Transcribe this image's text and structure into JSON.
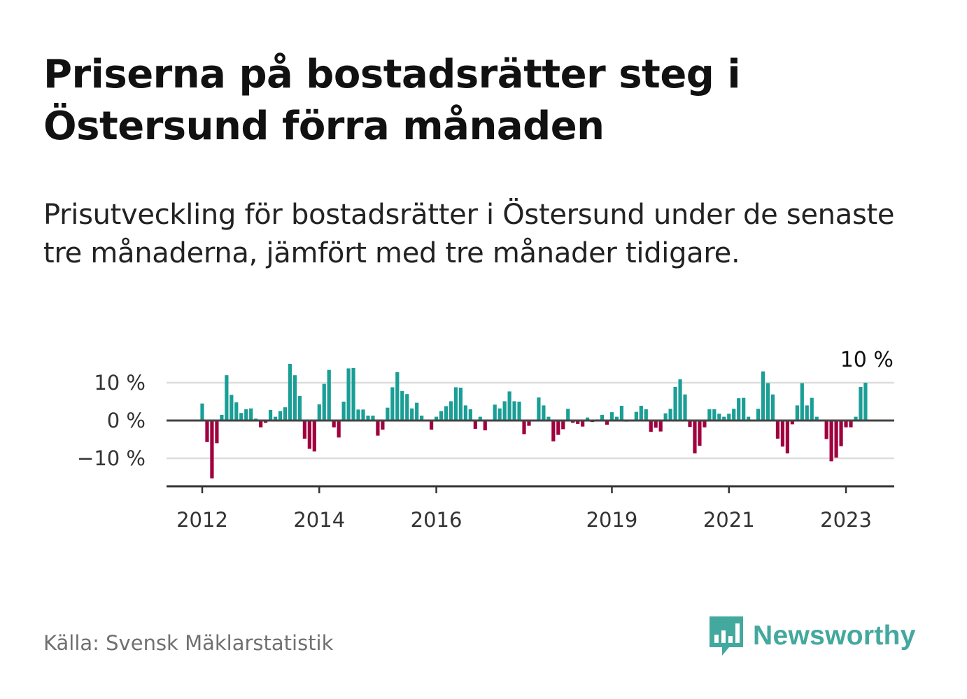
{
  "header": {
    "title": "Priserna på bostadsrätter steg i Östersund förra månaden",
    "subtitle": "Prisutveckling för bostadsrätter i Östersund under de senaste tre månaderna, jämfört med tre månader tidigare."
  },
  "footer": {
    "source": "Källa: Svensk Mäklarstatistik",
    "brand": "Newsworthy",
    "brand_icon": "bar-chart-speech-bubble-icon"
  },
  "colors": {
    "positive": "#1a9e96",
    "negative": "#a0003e",
    "zero_line": "#444444",
    "grid": "#dddddd",
    "axis": "#333333",
    "brand": "#43a89e"
  },
  "chart_data": {
    "type": "bar",
    "title": "",
    "xlabel": "",
    "ylabel": "",
    "ylim": [
      -17,
      17
    ],
    "y_ticks": [
      10,
      0,
      -10
    ],
    "y_tick_labels": [
      "10 %",
      "0 %",
      "−10 %"
    ],
    "x_tick_labels": [
      "2012",
      "2014",
      "2016",
      "2019",
      "2021",
      "2023"
    ],
    "grid": true,
    "last_value_label": "10 %",
    "series": [
      {
        "values": [
          4.5,
          -5.7,
          -15.3,
          -6.0,
          1.5,
          12.0,
          6.8,
          4.8,
          2.0,
          3.0,
          3.2,
          0.5,
          -1.8,
          -0.6,
          2.8,
          1.0,
          2.5,
          3.5,
          15.0,
          12.0,
          6.5,
          -4.8,
          -7.5,
          -8.2,
          4.3,
          9.7,
          13.4,
          -1.8,
          -4.5,
          5.0,
          13.8,
          13.9,
          2.9,
          2.9,
          1.3,
          1.3,
          -4.0,
          -2.4,
          3.4,
          8.8,
          12.8,
          7.8,
          7.0,
          3.2,
          4.7,
          1.3,
          -0.2,
          -2.4,
          1.0,
          2.5,
          3.8,
          5.1,
          8.8,
          8.7,
          4.0,
          3.0,
          -2.2,
          1.0,
          -2.6,
          0.2,
          4.2,
          3.2,
          5.1,
          7.7,
          5.1,
          5.0,
          -3.6,
          -1.4,
          -0.2,
          6.1,
          4.0,
          1.0,
          -5.5,
          -3.8,
          -2.3,
          3.1,
          -0.6,
          -0.9,
          -1.6,
          0.8,
          -0.4,
          0.3,
          1.5,
          -1.1,
          2.2,
          1.0,
          3.9,
          -0.3,
          -0.2,
          2.3,
          3.9,
          3.0,
          -3.0,
          -1.9,
          -2.9,
          1.9,
          3.1,
          8.9,
          10.9,
          6.9,
          -1.7,
          -8.7,
          -6.7,
          -1.8,
          3.0,
          3.0,
          1.8,
          1.0,
          1.8,
          3.1,
          5.9,
          6.0,
          1.0,
          -0.2,
          3.1,
          13.0,
          9.9,
          6.9,
          -4.8,
          -6.9,
          -8.7,
          -1.0,
          4.0,
          9.9,
          4.0,
          6.0,
          1.0,
          0.0,
          -4.9,
          -10.8,
          -9.8,
          -6.8,
          -1.8,
          -1.8,
          1.0,
          8.9,
          10.0
        ]
      }
    ]
  }
}
